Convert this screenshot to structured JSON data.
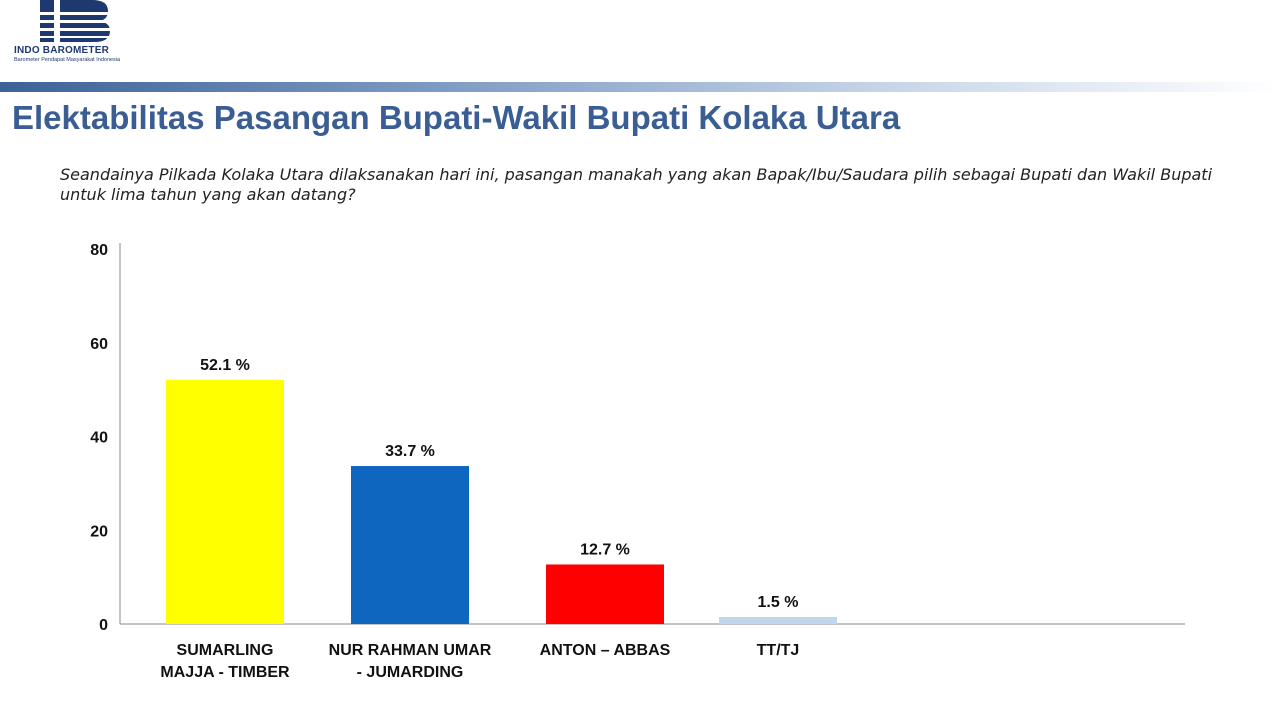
{
  "header": {
    "logo_name": "INDO BAROMETER",
    "logo_tagline": "Barometer Pendapat Masyarakat Indonesia",
    "brand_color": "#1e3970"
  },
  "title": "Elektabilitas Pasangan Bupati-Wakil Bupati Kolaka Utara",
  "question": "Seandainya Pilkada Kolaka Utara dilaksanakan hari ini, pasangan manakah yang akan Bapak/Ibu/Saudara pilih sebagai Bupati dan Wakil Bupati untuk lima tahun yang akan datang?",
  "chart_data": {
    "type": "bar",
    "categories": [
      [
        "SUMARLING",
        "MAJJA - TIMBER"
      ],
      [
        "NUR RAHMAN UMAR",
        "- JUMARDING"
      ],
      [
        "ANTON – ABBAS"
      ],
      [
        "TT/TJ"
      ]
    ],
    "values": [
      52.1,
      33.7,
      12.7,
      1.5
    ],
    "data_labels": [
      "52.1 %",
      "33.7 %",
      "12.7 %",
      "1.5 %"
    ],
    "colors": [
      "#ffff00",
      "#0f66bf",
      "#ff0000",
      "#c2d7ec"
    ],
    "ylim": [
      0,
      80
    ],
    "yticks": [
      0,
      20,
      40,
      60,
      80
    ],
    "grid": false,
    "legend": "none",
    "title": "",
    "xlabel": "",
    "ylabel": ""
  }
}
